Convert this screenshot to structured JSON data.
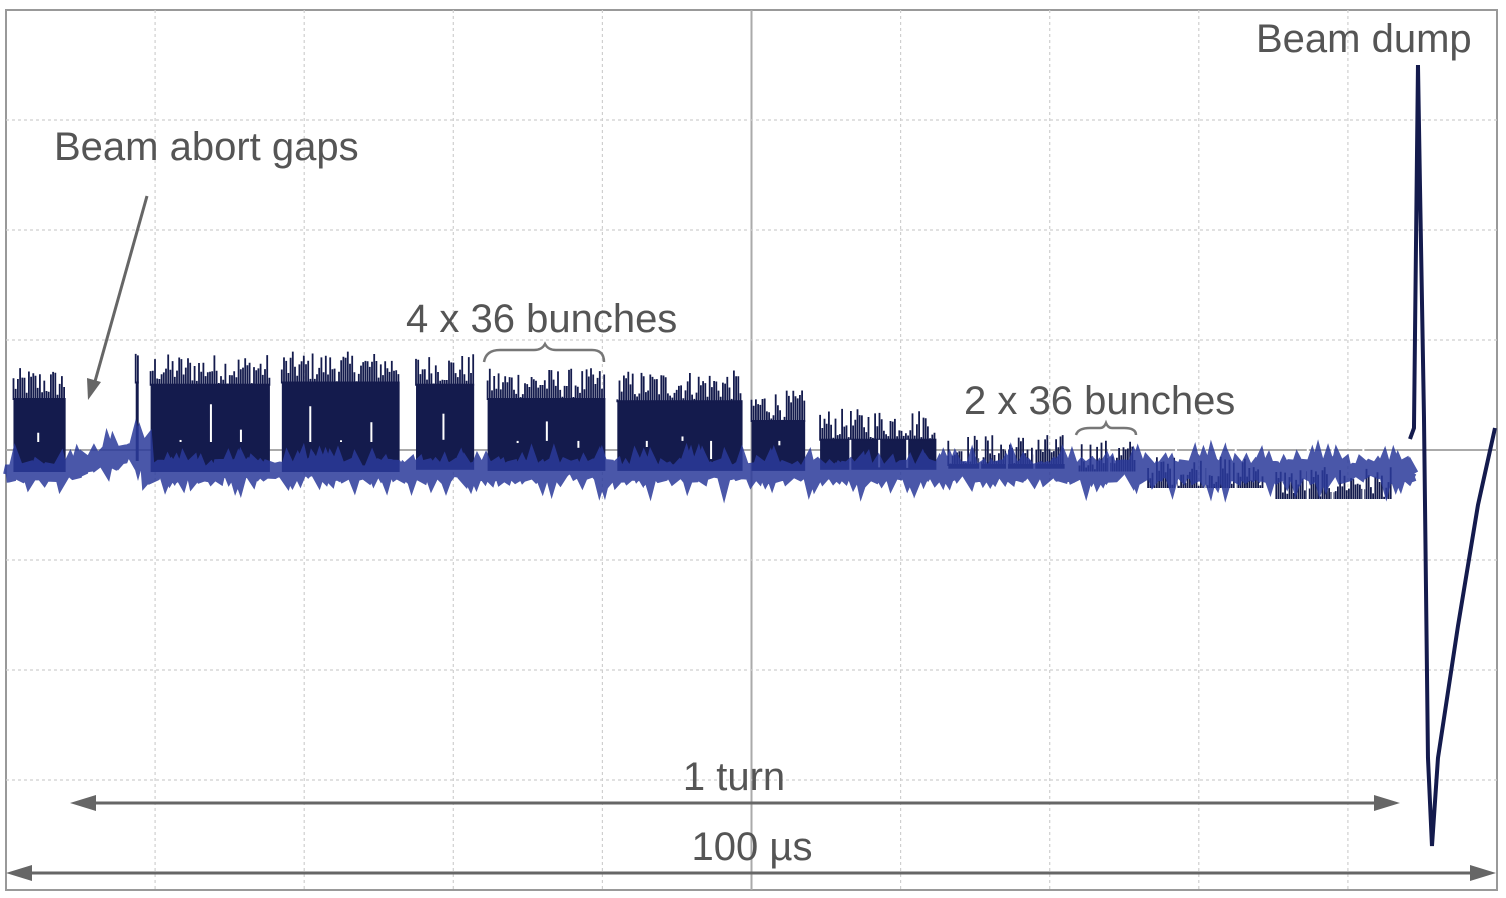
{
  "chart_data": {
    "type": "line",
    "title": "",
    "xlabel": "",
    "ylabel": "",
    "grid": true,
    "grid_divisions": {
      "x": 10,
      "y": 8
    },
    "trace_color": "#141b4d",
    "baseline_color": "#2a3a9a",
    "bunch_groups": [
      {
        "start": 0.5,
        "end": 4.0,
        "peak": 0.7,
        "floor": -0.2
      },
      {
        "start": 8.7,
        "end": 8.9,
        "peak": 0.85,
        "floor": -0.1
      },
      {
        "start": 9.7,
        "end": 17.7,
        "peak": 0.83,
        "floor": -0.2
      },
      {
        "start": 18.5,
        "end": 26.4,
        "peak": 0.85,
        "floor": -0.2
      },
      {
        "start": 27.5,
        "end": 31.4,
        "peak": 0.83,
        "floor": -0.18
      },
      {
        "start": 32.3,
        "end": 40.2,
        "peak": 0.7,
        "floor": -0.19
      },
      {
        "start": 41.0,
        "end": 49.4,
        "peak": 0.68,
        "floor": -0.19
      },
      {
        "start": 50.0,
        "end": 53.6,
        "peak": 0.5,
        "floor": -0.19
      },
      {
        "start": 54.6,
        "end": 62.4,
        "peak": 0.33,
        "floor": -0.18
      },
      {
        "start": 63.2,
        "end": 71.0,
        "peak": 0.1,
        "floor": -0.17
      },
      {
        "start": 72.0,
        "end": 75.8,
        "peak": 0.05,
        "floor": -0.16
      },
      {
        "start": 76.6,
        "end": 84.4,
        "peak": -0.1,
        "floor": -0.16
      },
      {
        "start": 85.2,
        "end": 93.0,
        "peak": -0.2,
        "floor": -0.16
      }
    ],
    "beam_dump": {
      "x": 94.7,
      "peak": 3.5,
      "dip": -3.6
    }
  },
  "annotations": {
    "beam_abort_gaps": "Beam abort gaps",
    "bunches_4x36": "4 x 36 bunches",
    "bunches_2x36": "2 x 36 bunches",
    "beam_dump": "Beam dump",
    "one_turn": "1 turn",
    "duration": "100 µs"
  }
}
